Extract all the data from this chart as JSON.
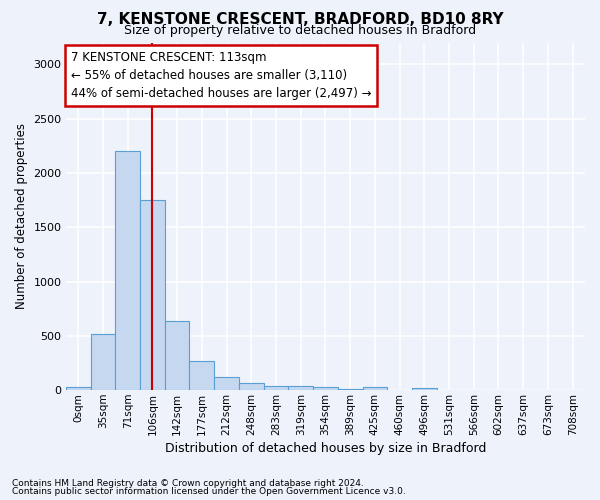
{
  "title": "7, KENSTONE CRESCENT, BRADFORD, BD10 8RY",
  "subtitle": "Size of property relative to detached houses in Bradford",
  "xlabel": "Distribution of detached houses by size in Bradford",
  "ylabel": "Number of detached properties",
  "bin_labels": [
    "0sqm",
    "35sqm",
    "71sqm",
    "106sqm",
    "142sqm",
    "177sqm",
    "212sqm",
    "248sqm",
    "283sqm",
    "319sqm",
    "354sqm",
    "389sqm",
    "425sqm",
    "460sqm",
    "496sqm",
    "531sqm",
    "566sqm",
    "602sqm",
    "637sqm",
    "673sqm",
    "708sqm"
  ],
  "bar_values": [
    30,
    520,
    2200,
    1750,
    635,
    270,
    125,
    70,
    40,
    35,
    30,
    8,
    25,
    5,
    20,
    3,
    2,
    2,
    2,
    2,
    1
  ],
  "bar_color": "#c5d8f0",
  "bar_edge_color": "#5a9fd4",
  "red_line_x": 3.0,
  "red_line_color": "#cc0000",
  "annotation_text": "7 KENSTONE CRESCENT: 113sqm\n← 55% of detached houses are smaller (3,110)\n44% of semi-detached houses are larger (2,497) →",
  "annotation_box_color": "#ffffff",
  "annotation_box_edge": "#cc0000",
  "ylim": [
    0,
    3200
  ],
  "yticks": [
    0,
    500,
    1000,
    1500,
    2000,
    2500,
    3000
  ],
  "footnote1": "Contains HM Land Registry data © Crown copyright and database right 2024.",
  "footnote2": "Contains public sector information licensed under the Open Government Licence v3.0.",
  "background_color": "#eef2fb",
  "grid_color": "#ffffff",
  "title_fontsize": 11,
  "subtitle_fontsize": 9
}
